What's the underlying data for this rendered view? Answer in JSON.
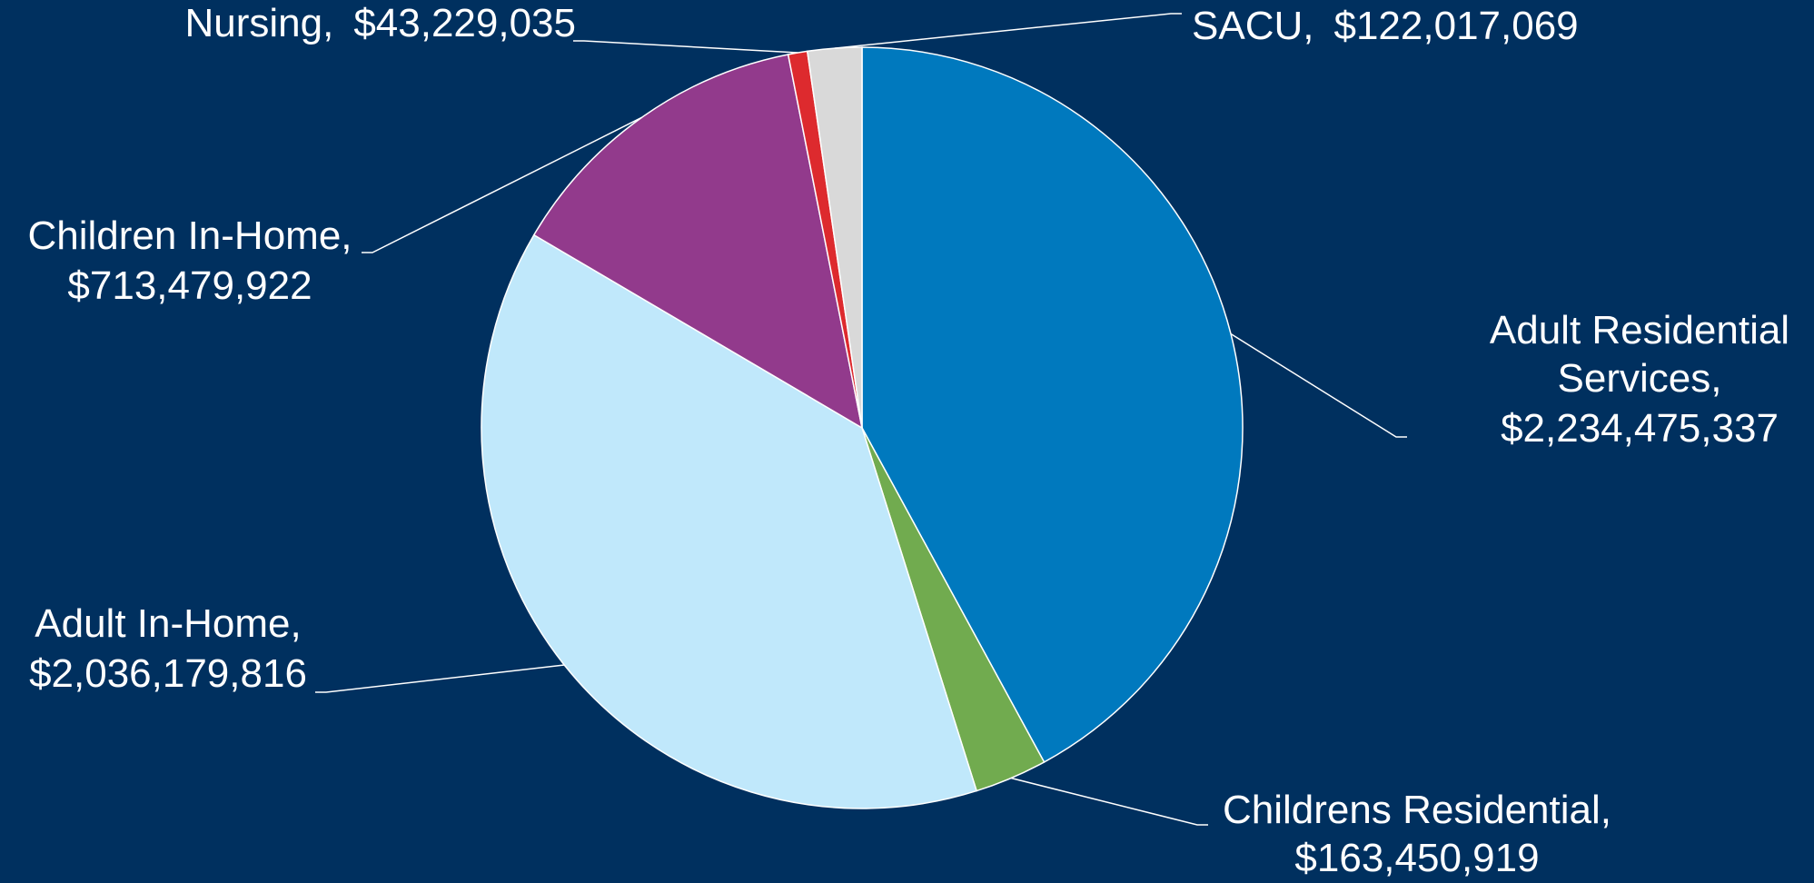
{
  "chart_data": {
    "type": "pie",
    "categories": [
      "Adult Residential Services,",
      "Childrens Residential,",
      "Adult In-Home,",
      "Children In-Home,",
      "Nursing,",
      "SACU,"
    ],
    "values": [
      2234475337,
      163450919,
      2036179816,
      713479922,
      43229035,
      122017069
    ],
    "value_labels": [
      "$2,234,475,337",
      "$163,450,919",
      "$2,036,179,816",
      "$713,479,922",
      "$43,229,035",
      "$122,017,069"
    ],
    "colors": [
      "#0079be",
      "#71ab4f",
      "#c0e8fb",
      "#923a8c",
      "#dd2a2e",
      "#d9d9d9"
    ]
  }
}
